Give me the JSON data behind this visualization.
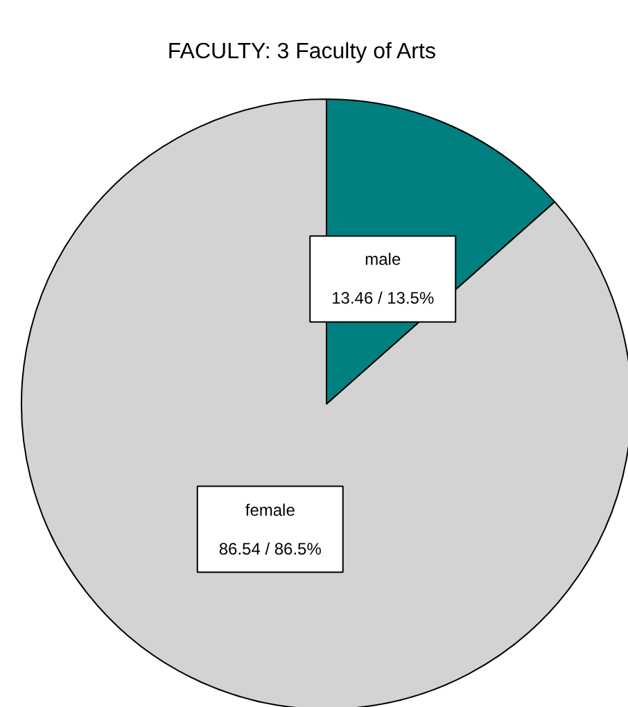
{
  "chart_data": {
    "type": "pie",
    "title": "FACULTY:    3  Faculty of Arts",
    "categories": [
      "male",
      "female"
    ],
    "values": [
      13.46,
      86.54
    ],
    "colors": [
      "#008080",
      "#d3d3d3"
    ],
    "value_labels": [
      "13.46 / 13.5%",
      "86.54 / 86.5%"
    ]
  }
}
